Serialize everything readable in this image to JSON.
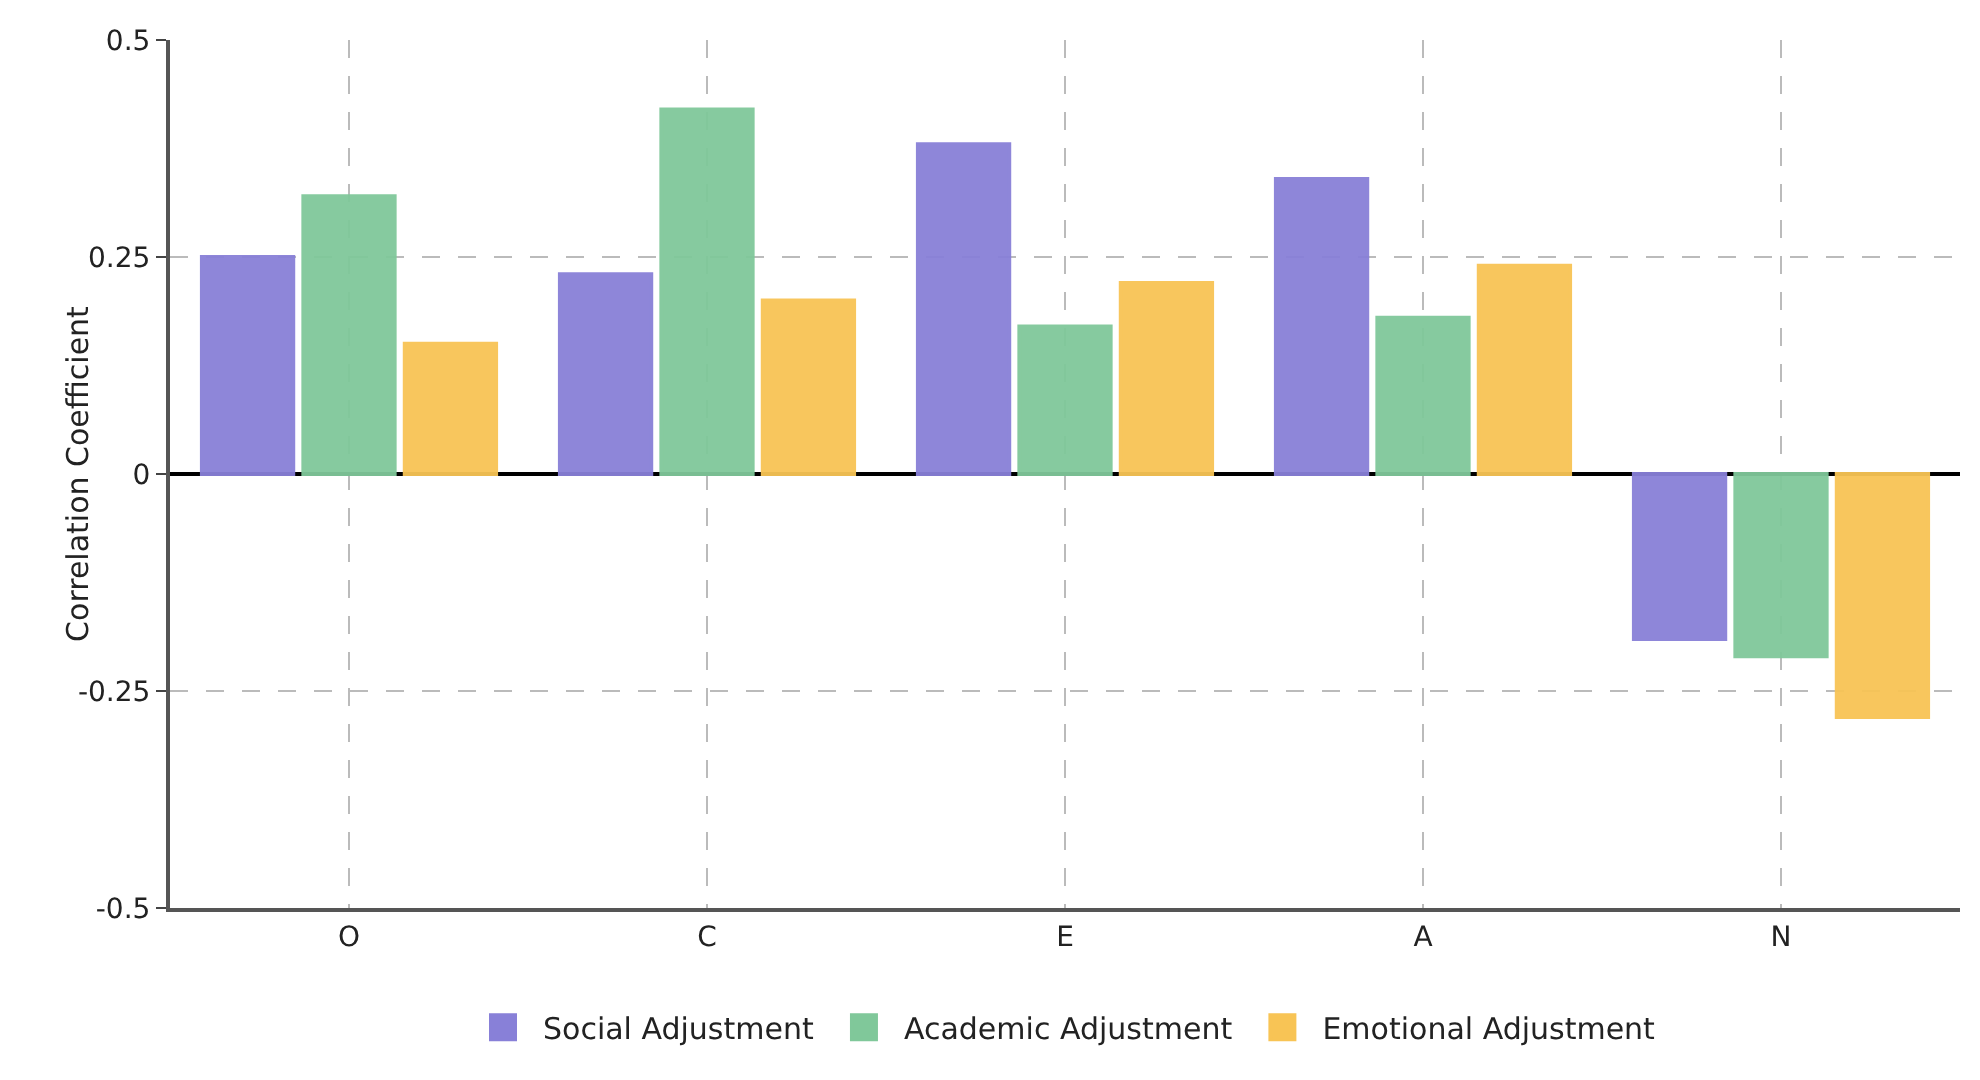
{
  "chart_data": {
    "type": "bar",
    "ylabel": "Correlation Coefficient",
    "categories": [
      "O",
      "C",
      "E",
      "A",
      "N"
    ],
    "series": [
      {
        "name": "Social Adjustment",
        "color": "#8880d8",
        "values": [
          0.25,
          0.23,
          0.38,
          0.34,
          -0.19
        ]
      },
      {
        "name": "Academic Adjustment",
        "color": "#80c89a",
        "values": [
          0.32,
          0.42,
          0.17,
          0.18,
          -0.21
        ]
      },
      {
        "name": "Emotional Adjustment",
        "color": "#f8c455",
        "values": [
          0.15,
          0.2,
          0.22,
          0.24,
          -0.28
        ]
      }
    ],
    "ylim": [
      -0.5,
      0.5
    ],
    "yticks": [
      -0.5,
      -0.25,
      0,
      0.25,
      0.5
    ],
    "grid": true,
    "legend": "bottom"
  }
}
